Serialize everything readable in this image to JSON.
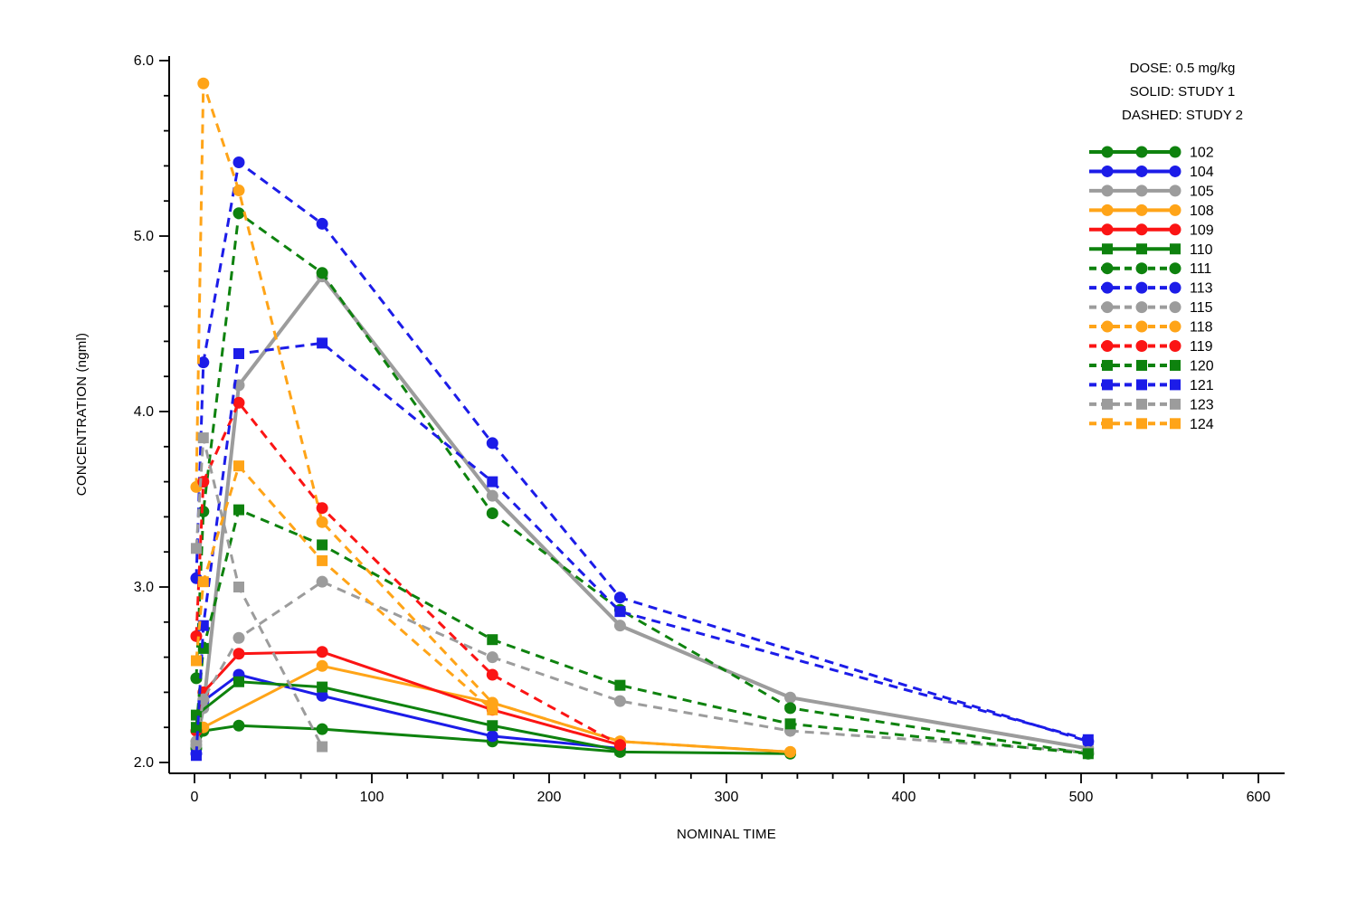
{
  "chart_data": {
    "type": "line",
    "title": "",
    "xlabel": "NOMINAL TIME",
    "ylabel": "CONCENTRATION (ngml)",
    "legend_header": [
      "DOSE: 0.5 mg/kg",
      "SOLID: STUDY 1",
      "DASHED: STUDY 2"
    ],
    "x_axis": {
      "min": 0,
      "max": 615,
      "major_tick_step": 100,
      "minor_tick_step": 20,
      "tick_labels": [
        "0",
        "100",
        "200",
        "300",
        "400",
        "500",
        "600"
      ]
    },
    "y_axis": {
      "min": 2.0,
      "max": 6.0,
      "major_tick_step": 1.0,
      "minor_tick_step": 0.2,
      "tick_labels": [
        "2.0",
        "3.0",
        "4.0",
        "5.0",
        "6.0"
      ]
    },
    "colors": {
      "green": "#0E820E",
      "blue": "#1C1CE8",
      "gray": "#9C9C9C",
      "orange": "#FFA418",
      "red": "#FB1414"
    },
    "series": [
      {
        "id": "102",
        "study": 1,
        "line": "solid",
        "marker": "circle",
        "color": "green",
        "points": [
          [
            1,
            2.08
          ],
          [
            5,
            2.18
          ],
          [
            25,
            2.21
          ],
          [
            72,
            2.19
          ],
          [
            168,
            2.12
          ],
          [
            240,
            2.06
          ],
          [
            336,
            2.05
          ]
        ]
      },
      {
        "id": "104",
        "study": 1,
        "line": "solid",
        "marker": "circle",
        "color": "blue",
        "points": [
          [
            1,
            2.05
          ],
          [
            5,
            2.35
          ],
          [
            25,
            2.5
          ],
          [
            72,
            2.38
          ],
          [
            168,
            2.15
          ],
          [
            240,
            2.08
          ]
        ]
      },
      {
        "id": "105",
        "study": 1,
        "line": "solid",
        "marker": "circle",
        "color": "gray",
        "points": [
          [
            1,
            2.1
          ],
          [
            5,
            2.31
          ],
          [
            25,
            4.15
          ],
          [
            72,
            4.77
          ],
          [
            168,
            3.52
          ],
          [
            240,
            2.78
          ],
          [
            336,
            2.37
          ],
          [
            504,
            2.08
          ]
        ]
      },
      {
        "id": "108",
        "study": 1,
        "line": "solid",
        "marker": "circle",
        "color": "orange",
        "points": [
          [
            5,
            2.2
          ],
          [
            72,
            2.55
          ],
          [
            168,
            2.34
          ],
          [
            240,
            2.12
          ],
          [
            336,
            2.06
          ]
        ]
      },
      {
        "id": "109",
        "study": 1,
        "line": "solid",
        "marker": "circle",
        "color": "red",
        "points": [
          [
            1,
            2.18
          ],
          [
            5,
            2.4
          ],
          [
            25,
            2.62
          ],
          [
            72,
            2.63
          ],
          [
            168,
            2.3
          ],
          [
            240,
            2.1
          ]
        ]
      },
      {
        "id": "110",
        "study": 1,
        "line": "solid",
        "marker": "square",
        "color": "green",
        "points": [
          [
            1,
            2.27
          ],
          [
            25,
            2.46
          ],
          [
            72,
            2.43
          ],
          [
            168,
            2.21
          ],
          [
            240,
            2.07
          ]
        ]
      },
      {
        "id": "111",
        "study": 2,
        "line": "dashed",
        "marker": "circle",
        "color": "green",
        "points": [
          [
            1,
            2.48
          ],
          [
            5,
            3.43
          ],
          [
            25,
            5.13
          ],
          [
            72,
            4.79
          ],
          [
            168,
            3.42
          ],
          [
            240,
            2.87
          ],
          [
            336,
            2.31
          ],
          [
            504,
            2.05
          ]
        ]
      },
      {
        "id": "113",
        "study": 2,
        "line": "dashed",
        "marker": "circle",
        "color": "blue",
        "points": [
          [
            1,
            3.05
          ],
          [
            5,
            4.28
          ],
          [
            25,
            5.42
          ],
          [
            72,
            5.07
          ],
          [
            168,
            3.82
          ],
          [
            240,
            2.94
          ],
          [
            504,
            2.12
          ]
        ]
      },
      {
        "id": "115",
        "study": 2,
        "line": "dashed",
        "marker": "circle",
        "color": "gray",
        "points": [
          [
            1,
            2.12
          ],
          [
            5,
            2.36
          ],
          [
            25,
            2.71
          ],
          [
            72,
            3.03
          ],
          [
            168,
            2.6
          ],
          [
            240,
            2.35
          ],
          [
            336,
            2.18
          ],
          [
            504,
            2.06
          ]
        ]
      },
      {
        "id": "118",
        "study": 2,
        "line": "dashed",
        "marker": "circle",
        "color": "orange",
        "points": [
          [
            1,
            3.57
          ],
          [
            5,
            5.87
          ],
          [
            25,
            5.26
          ],
          [
            72,
            3.37
          ],
          [
            168,
            2.34
          ],
          [
            240,
            2.12
          ],
          [
            336,
            2.06
          ]
        ]
      },
      {
        "id": "119",
        "study": 2,
        "line": "dashed",
        "marker": "circle",
        "color": "red",
        "points": [
          [
            1,
            2.72
          ],
          [
            5,
            3.6
          ],
          [
            25,
            4.05
          ],
          [
            72,
            3.45
          ],
          [
            168,
            2.5
          ],
          [
            240,
            2.1
          ]
        ]
      },
      {
        "id": "120",
        "study": 2,
        "line": "dashed",
        "marker": "square",
        "color": "green",
        "points": [
          [
            1,
            2.2
          ],
          [
            5,
            2.65
          ],
          [
            25,
            3.44
          ],
          [
            72,
            3.24
          ],
          [
            168,
            2.7
          ],
          [
            240,
            2.44
          ],
          [
            336,
            2.22
          ],
          [
            504,
            2.05
          ]
        ]
      },
      {
        "id": "121",
        "study": 2,
        "line": "dashed",
        "marker": "square",
        "color": "blue",
        "points": [
          [
            1,
            2.04
          ],
          [
            5,
            2.78
          ],
          [
            25,
            4.33
          ],
          [
            72,
            4.39
          ],
          [
            168,
            3.6
          ],
          [
            240,
            2.86
          ],
          [
            504,
            2.13
          ]
        ]
      },
      {
        "id": "123",
        "study": 2,
        "line": "dashed",
        "marker": "square",
        "color": "gray",
        "points": [
          [
            1,
            3.22
          ],
          [
            5,
            3.85
          ],
          [
            25,
            3.0
          ],
          [
            72,
            2.09
          ]
        ]
      },
      {
        "id": "124",
        "study": 2,
        "line": "dashed",
        "marker": "square",
        "color": "orange",
        "points": [
          [
            1,
            2.58
          ],
          [
            5,
            3.03
          ],
          [
            25,
            3.69
          ],
          [
            72,
            3.15
          ],
          [
            168,
            2.3
          ]
        ]
      }
    ]
  }
}
